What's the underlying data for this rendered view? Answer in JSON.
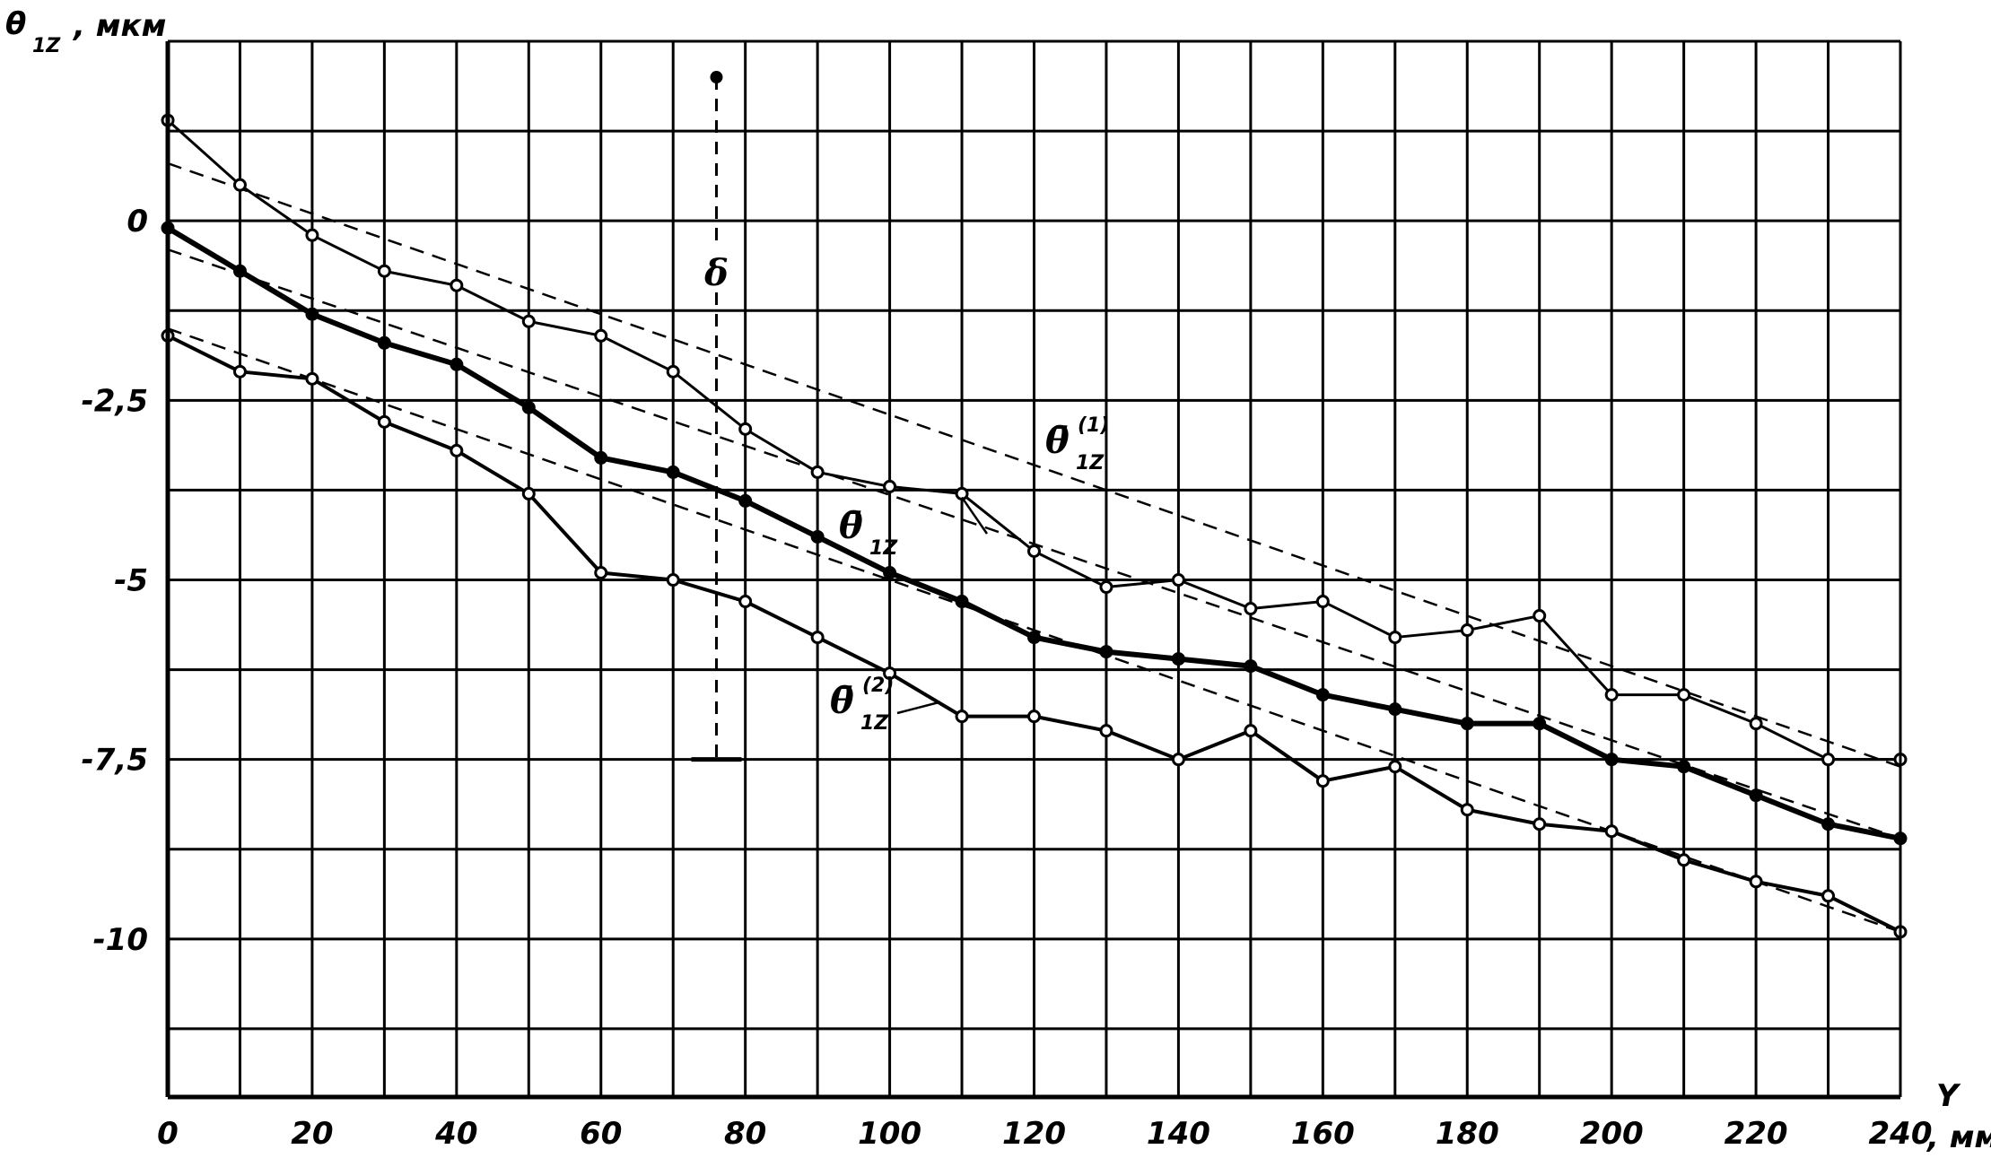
{
  "chart_data": {
    "type": "line",
    "title": "",
    "ylabel": {
      "main": "θ",
      "sub": "1Z",
      "unit": ", мкм"
    },
    "xlabel_symbol": "Y",
    "xlabel_unit": ", мм",
    "x_ticks": [
      "0",
      "20",
      "40",
      "60",
      "80",
      "100",
      "120",
      "140",
      "160",
      "180",
      "200",
      "220",
      "240"
    ],
    "y_ticks": [
      {
        "value": 0,
        "label": "0"
      },
      {
        "value": -2.5,
        "label": "-2,5"
      },
      {
        "value": -5,
        "label": "-5"
      },
      {
        "value": -7.5,
        "label": "-7,5"
      },
      {
        "value": -10,
        "label": "-10"
      }
    ],
    "xlim": [
      0,
      240
    ],
    "ylim": [
      -12.2,
      2.5
    ],
    "grid": true,
    "annotation": {
      "label": "δ",
      "x": 76,
      "y_top": 2.0,
      "y_bottom": -7.5
    },
    "series": [
      {
        "name": "θ̄1Z(1)",
        "label_main": "θ̄",
        "label_sub": "1Z",
        "label_sup": "(1)",
        "x": [
          0,
          10,
          20,
          30,
          40,
          50,
          60,
          70,
          80,
          90,
          100,
          110,
          120,
          130,
          140,
          150,
          160,
          170,
          180,
          190,
          200,
          210,
          220,
          230,
          240
        ],
        "values": [
          1.4,
          0.5,
          -0.2,
          -0.7,
          -0.9,
          -1.4,
          -1.6,
          -2.1,
          -2.9,
          -3.5,
          -3.7,
          -3.8,
          -4.6,
          -5.1,
          -5.0,
          -5.4,
          -5.3,
          -5.8,
          -5.7,
          -5.5,
          -6.6,
          -6.6,
          -7.0,
          -7.5,
          -7.5
        ]
      },
      {
        "name": "θ̄1Z",
        "label_main": "θ̄",
        "label_sub": "1Z",
        "label_sup": "",
        "x": [
          0,
          10,
          20,
          30,
          40,
          50,
          60,
          70,
          80,
          90,
          100,
          110,
          120,
          130,
          140,
          150,
          160,
          170,
          180,
          190,
          200,
          210,
          220,
          230,
          240
        ],
        "values": [
          -0.1,
          -0.7,
          -1.3,
          -1.7,
          -2.0,
          -2.6,
          -3.3,
          -3.5,
          -3.9,
          -4.4,
          -4.9,
          -5.3,
          -5.8,
          -6.0,
          -6.1,
          -6.2,
          -6.6,
          -6.8,
          -7.0,
          -7.0,
          -7.5,
          -7.6,
          -8.0,
          -8.4,
          -8.6
        ]
      },
      {
        "name": "θ̄1Z(2)",
        "label_main": "θ̄",
        "label_sub": "1Z",
        "label_sup": "(2)",
        "x": [
          0,
          10,
          20,
          30,
          40,
          50,
          60,
          70,
          80,
          90,
          100,
          110,
          120,
          130,
          140,
          150,
          160,
          170,
          180,
          190,
          200,
          210,
          220,
          230,
          240
        ],
        "values": [
          -1.6,
          -2.1,
          -2.2,
          -2.8,
          -3.2,
          -3.8,
          -4.9,
          -5.0,
          -5.3,
          -5.8,
          -6.3,
          -6.9,
          -6.9,
          -7.1,
          -7.5,
          -7.1,
          -7.8,
          -7.6,
          -8.2,
          -8.4,
          -8.5,
          -8.9,
          -9.2,
          -9.4,
          -9.9
        ]
      }
    ],
    "trend_lines": [
      {
        "for": "θ̄1Z(1)",
        "x": [
          0,
          240
        ],
        "values": [
          0.8,
          -7.6
        ]
      },
      {
        "for": "θ̄1Z",
        "x": [
          0,
          240
        ],
        "values": [
          -0.4,
          -8.6
        ]
      },
      {
        "for": "θ̄1Z(2)",
        "x": [
          0,
          240
        ],
        "values": [
          -1.5,
          -9.9
        ]
      }
    ]
  }
}
